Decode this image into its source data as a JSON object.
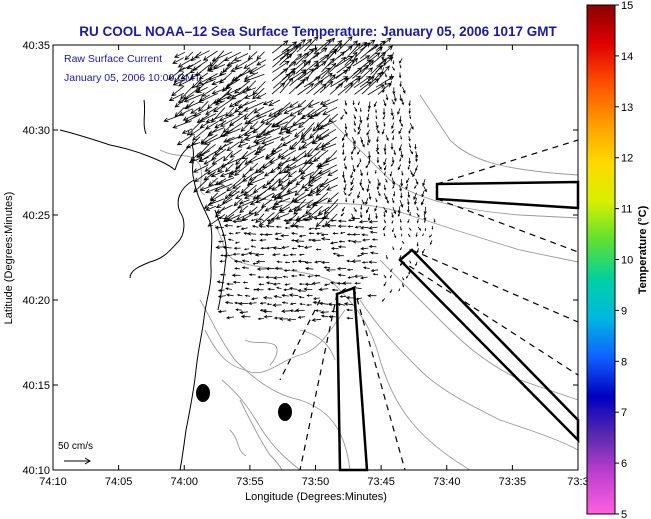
{
  "title": "RU COOL  NOAA–12  Sea Surface Temperature:  January 05, 2006 1017 GMT",
  "annotation": {
    "line1": "Raw Surface Current",
    "line2": "January 05, 2006 10:00 GMT"
  },
  "x_axis": {
    "label": "Longitude (Degrees:Minutes)",
    "ticks": [
      "74:10",
      "74:05",
      "74:00",
      "73:55",
      "73:50",
      "73:45",
      "73:40",
      "73:35",
      "73:3"
    ]
  },
  "y_axis": {
    "label": "Latitude (Degrees:Minutes)",
    "ticks": [
      "40:35",
      "40:30",
      "40:25",
      "40:20",
      "40:15",
      "40:10"
    ]
  },
  "colorbar": {
    "label": "Temperature (°C)",
    "ticks": [
      "15",
      "14",
      "13",
      "12",
      "11",
      "10",
      "9",
      "8",
      "7",
      "6",
      "5"
    ],
    "colors": [
      "#8b0000",
      "#e00000",
      "#ff5000",
      "#ff9a00",
      "#ffd800",
      "#d8f000",
      "#60e030",
      "#00d0a0",
      "#00b8e0",
      "#1060ff",
      "#0000c0",
      "#5a2ab0",
      "#c040d0",
      "#ff60e0"
    ]
  },
  "scale_label": "50 cm/s",
  "colors": {
    "title": "#1a1aa6",
    "frame": "#000000",
    "bathymetry": "#9a9a9a"
  }
}
